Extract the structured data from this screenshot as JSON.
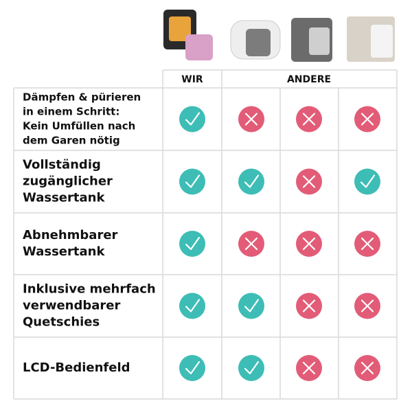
{
  "header": {
    "columns": [
      "WIR",
      "ANDERE"
    ]
  },
  "rows": [
    {
      "lines": [
        "Dämpfen & pürieren",
        "in einem Schritt:",
        "Kein Umfüllen nach",
        "dem Garen nötig"
      ],
      "cells": [
        true,
        false,
        false,
        false
      ]
    },
    {
      "lines": [
        "Vollständig",
        "zugänglicher",
        "Wassertank"
      ],
      "cells": [
        true,
        true,
        false,
        true
      ]
    },
    {
      "lines": [
        "Abnehmbarer",
        "Wassertank"
      ],
      "cells": [
        true,
        false,
        false,
        false
      ]
    },
    {
      "lines": [
        "Inklusive mehrfach",
        "verwendbarer",
        "Quetschies"
      ],
      "cells": [
        true,
        true,
        false,
        false
      ]
    },
    {
      "lines": [
        "LCD-Bedienfeld"
      ],
      "cells": [
        true,
        true,
        false,
        false
      ]
    }
  ]
}
